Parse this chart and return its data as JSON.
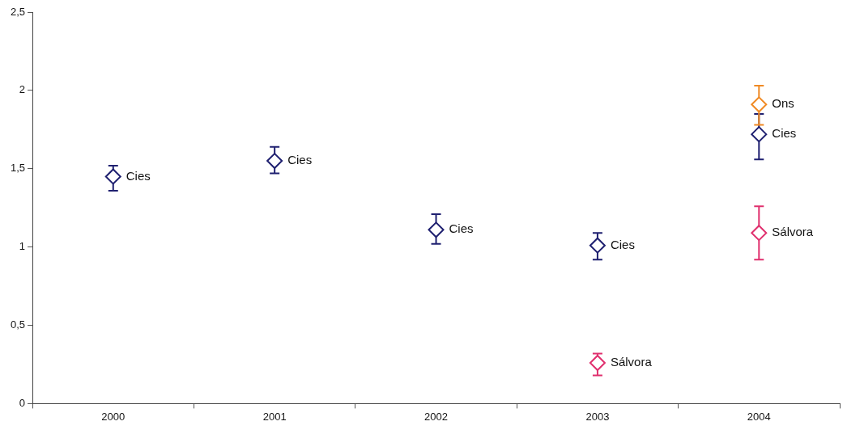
{
  "chart_data": {
    "type": "scatter",
    "categories": [
      "2000",
      "2001",
      "2002",
      "2003",
      "2004"
    ],
    "series": [
      {
        "name": "Cies",
        "color": "#1f2070",
        "values": [
          1.45,
          1.55,
          1.11,
          1.01,
          1.72
        ],
        "errors": [
          [
            1.36,
            1.52
          ],
          [
            1.47,
            1.64
          ],
          [
            1.02,
            1.21
          ],
          [
            0.92,
            1.09
          ],
          [
            1.56,
            1.85
          ]
        ]
      },
      {
        "name": "Sálvora",
        "color": "#e0306e",
        "values": [
          null,
          null,
          null,
          0.26,
          1.09
        ],
        "errors": [
          null,
          null,
          null,
          [
            0.18,
            0.32
          ],
          [
            0.92,
            1.26
          ]
        ]
      },
      {
        "name": "Ons",
        "color": "#f08a24",
        "values": [
          null,
          null,
          null,
          null,
          1.91
        ],
        "errors": [
          null,
          null,
          null,
          null,
          [
            1.78,
            2.03
          ]
        ]
      }
    ],
    "ylim": [
      0,
      2.5
    ],
    "yticks": [
      0,
      {
        "value": 0.5,
        "label": "0,5"
      },
      1,
      {
        "value": 1.5,
        "label": "1,5"
      },
      2,
      {
        "value": 2.5,
        "label": "2,5"
      }
    ],
    "grid": false,
    "legend": false,
    "marker": "diamond"
  }
}
